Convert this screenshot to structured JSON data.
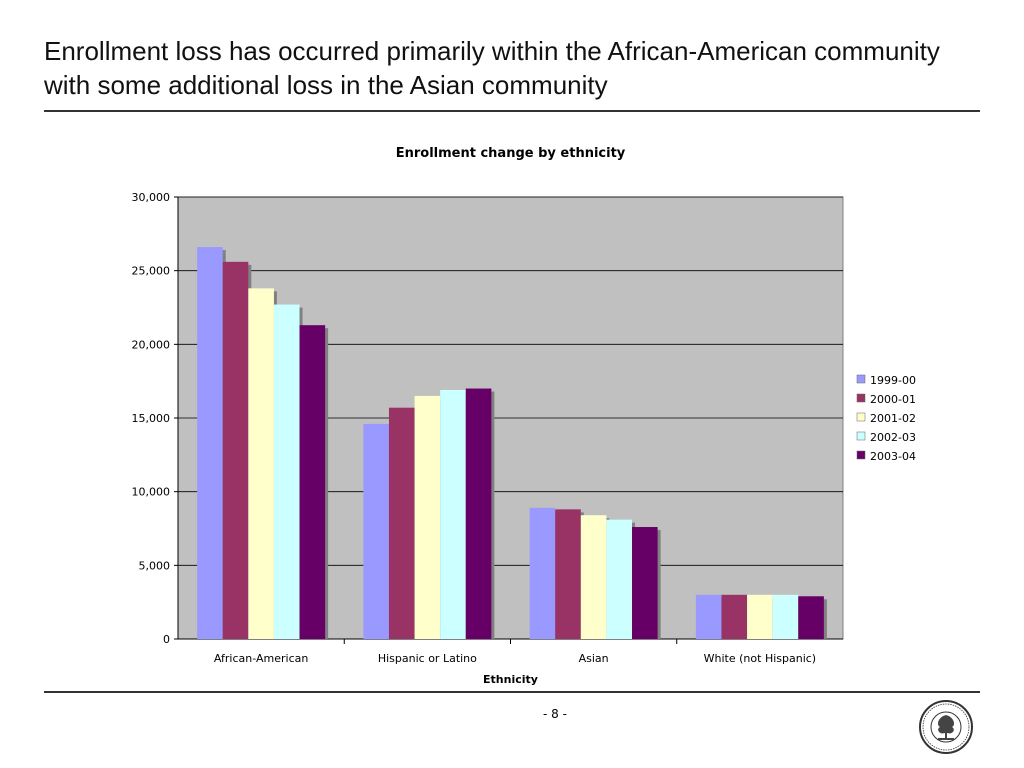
{
  "slide": {
    "title": "Enrollment loss has occurred primarily within the African-American community with some additional loss in the Asian community",
    "page_number": "- 8 -",
    "seal_icon": "school-district-seal-icon"
  },
  "colors": {
    "plot_background": "#c0c0c0",
    "gridline": "#000000",
    "series": [
      "#9999ff",
      "#993366",
      "#ffffcc",
      "#ccffff",
      "#660066"
    ],
    "shadow": "#808080"
  },
  "chart_data": {
    "type": "bar",
    "title": "Enrollment change by ethnicity",
    "xlabel": "Ethnicity",
    "ylabel": "",
    "ylim": [
      0,
      30000
    ],
    "yticks": [
      0,
      5000,
      10000,
      15000,
      20000,
      25000,
      30000
    ],
    "ytick_labels": [
      "0",
      "5,000",
      "10,000",
      "15,000",
      "20,000",
      "25,000",
      "30,000"
    ],
    "grid": true,
    "legend_position": "right",
    "categories": [
      "African-American",
      "Hispanic or Latino",
      "Asian",
      "White (not Hispanic)"
    ],
    "series": [
      {
        "name": "1999-00",
        "values": [
          26600,
          14600,
          8900,
          3000
        ]
      },
      {
        "name": "2000-01",
        "values": [
          25600,
          15700,
          8800,
          3000
        ]
      },
      {
        "name": "2001-02",
        "values": [
          23800,
          16500,
          8400,
          3000
        ]
      },
      {
        "name": "2002-03",
        "values": [
          22700,
          16900,
          8100,
          3000
        ]
      },
      {
        "name": "2003-04",
        "values": [
          21300,
          17000,
          7600,
          2900
        ]
      }
    ]
  }
}
